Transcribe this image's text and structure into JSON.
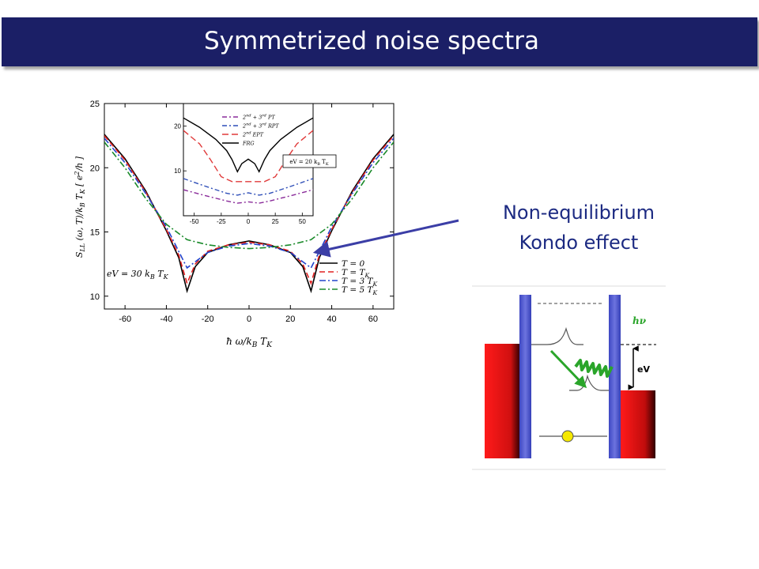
{
  "title": "Symmetrized noise spectra",
  "annotation": {
    "line1": "Non-equilibrium",
    "line2": "Kondo effect"
  },
  "colors": {
    "title_bg": "#1b1f66",
    "annotation": "#1c2a82",
    "arrow": "#3b3ea6"
  },
  "chart_data": [
    {
      "type": "line",
      "title": "",
      "xlabel": "ħω/k_B T_K",
      "ylabel": "S_LL(ω,T)/k_B T_K [e²/h]",
      "xlim": [
        -70,
        70
      ],
      "ylim": [
        9,
        25
      ],
      "x_ticks": [
        "-60",
        "-40",
        "-20",
        "0",
        "20",
        "40",
        "60"
      ],
      "y_ticks": [
        "10",
        "15",
        "20",
        "25"
      ],
      "annotation": "eV = 30 k_B T_K",
      "legend_position": "bottom-right",
      "series": [
        {
          "name": "T = 0",
          "color": "#000000",
          "dash": "",
          "points": [
            [
              -70,
              22.6
            ],
            [
              -60,
              20.7
            ],
            [
              -50,
              18.2
            ],
            [
              -40,
              15.1
            ],
            [
              -34,
              13.0
            ],
            [
              -30,
              10.4
            ],
            [
              -26,
              12.3
            ],
            [
              -20,
              13.4
            ],
            [
              -10,
              14.0
            ],
            [
              0,
              14.3
            ],
            [
              10,
              14.0
            ],
            [
              20,
              13.4
            ],
            [
              26,
              12.3
            ],
            [
              30,
              10.4
            ],
            [
              34,
              13.0
            ],
            [
              40,
              15.1
            ],
            [
              50,
              18.2
            ],
            [
              60,
              20.7
            ],
            [
              70,
              22.6
            ]
          ]
        },
        {
          "name": "T = T_K",
          "color": "#e02020",
          "dash": "7 4",
          "points": [
            [
              -70,
              22.5
            ],
            [
              -60,
              20.6
            ],
            [
              -50,
              18.1
            ],
            [
              -40,
              15.2
            ],
            [
              -34,
              13.2
            ],
            [
              -30,
              11.0
            ],
            [
              -26,
              12.5
            ],
            [
              -20,
              13.5
            ],
            [
              -10,
              14.0
            ],
            [
              0,
              14.2
            ],
            [
              10,
              14.0
            ],
            [
              20,
              13.5
            ],
            [
              26,
              12.5
            ],
            [
              30,
              11.0
            ],
            [
              34,
              13.2
            ],
            [
              40,
              15.2
            ],
            [
              50,
              18.1
            ],
            [
              60,
              20.6
            ],
            [
              70,
              22.5
            ]
          ]
        },
        {
          "name": "T = 3 T_K",
          "color": "#2244cc",
          "dash": "8 3 2 3",
          "points": [
            [
              -70,
              22.3
            ],
            [
              -60,
              20.4
            ],
            [
              -50,
              18.0
            ],
            [
              -40,
              15.4
            ],
            [
              -35,
              13.8
            ],
            [
              -30,
              12.2
            ],
            [
              -25,
              12.8
            ],
            [
              -20,
              13.4
            ],
            [
              -10,
              13.9
            ],
            [
              0,
              14.1
            ],
            [
              10,
              13.9
            ],
            [
              20,
              13.4
            ],
            [
              25,
              12.8
            ],
            [
              30,
              12.2
            ],
            [
              35,
              13.8
            ],
            [
              40,
              15.4
            ],
            [
              50,
              18.0
            ],
            [
              60,
              20.4
            ],
            [
              70,
              22.3
            ]
          ]
        },
        {
          "name": "T = 5 T_K",
          "color": "#1a8a2a",
          "dash": "8 3 2 3",
          "points": [
            [
              -70,
              22.0
            ],
            [
              -60,
              20.0
            ],
            [
              -50,
              17.6
            ],
            [
              -40,
              15.6
            ],
            [
              -30,
              14.4
            ],
            [
              -20,
              14.0
            ],
            [
              -10,
              13.8
            ],
            [
              0,
              13.7
            ],
            [
              10,
              13.8
            ],
            [
              20,
              14.0
            ],
            [
              30,
              14.4
            ],
            [
              40,
              15.6
            ],
            [
              50,
              17.6
            ],
            [
              60,
              20.0
            ],
            [
              70,
              22.0
            ]
          ]
        }
      ],
      "inset": {
        "xlim": [
          -60,
          60
        ],
        "ylim": [
          0,
          25
        ],
        "x_ticks": [
          "-50",
          "-25",
          "0",
          "25",
          "50"
        ],
        "y_ticks": [
          "10",
          "20"
        ],
        "annotation": "eV = 20 k_B T_K",
        "series": [
          {
            "name": "2nd + 3rd PT",
            "color": "#8a2c9a",
            "dash": "6 3 2 3",
            "points": [
              [
                -60,
                5.8
              ],
              [
                -40,
                4.5
              ],
              [
                -20,
                3.3
              ],
              [
                -10,
                2.8
              ],
              [
                0,
                3.1
              ],
              [
                10,
                2.8
              ],
              [
                20,
                3.3
              ],
              [
                40,
                4.5
              ],
              [
                60,
                5.8
              ]
            ]
          },
          {
            "name": "2nd + 3rd RPT",
            "color": "#2f4fb8",
            "dash": "6 3 2 3",
            "points": [
              [
                -60,
                8.3
              ],
              [
                -40,
                6.6
              ],
              [
                -20,
                5.0
              ],
              [
                -10,
                4.6
              ],
              [
                0,
                5.1
              ],
              [
                10,
                4.6
              ],
              [
                20,
                5.0
              ],
              [
                40,
                6.6
              ],
              [
                60,
                8.3
              ]
            ]
          },
          {
            "name": "2nd EPT",
            "color": "#e03a3a",
            "dash": "8 4",
            "points": [
              [
                -60,
                19.0
              ],
              [
                -45,
                16.0
              ],
              [
                -35,
                12.5
              ],
              [
                -25,
                8.7
              ],
              [
                -15,
                7.6
              ],
              [
                0,
                7.6
              ],
              [
                15,
                7.6
              ],
              [
                25,
                8.7
              ],
              [
                35,
                12.5
              ],
              [
                45,
                16.0
              ],
              [
                60,
                19.0
              ]
            ]
          },
          {
            "name": "FRG",
            "color": "#000000",
            "dash": "",
            "points": [
              [
                -60,
                21.8
              ],
              [
                -45,
                19.7
              ],
              [
                -30,
                17.0
              ],
              [
                -20,
                14.5
              ],
              [
                -15,
                12.5
              ],
              [
                -10,
                9.8
              ],
              [
                -6,
                11.6
              ],
              [
                0,
                12.6
              ],
              [
                6,
                11.6
              ],
              [
                10,
                9.8
              ],
              [
                15,
                12.5
              ],
              [
                20,
                14.5
              ],
              [
                30,
                17.0
              ],
              [
                45,
                19.7
              ],
              [
                60,
                21.8
              ]
            ]
          }
        ]
      }
    }
  ]
}
